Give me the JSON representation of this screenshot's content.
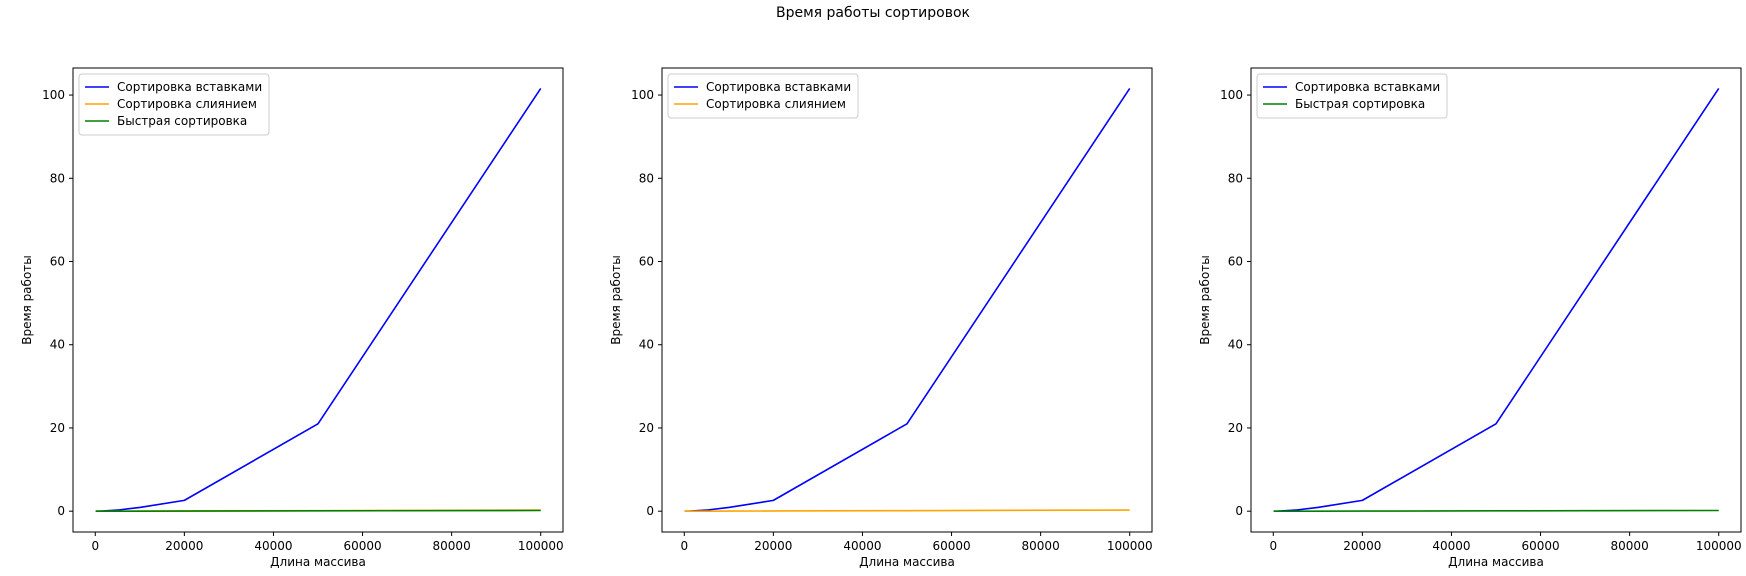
{
  "figure_title": "Время работы сортировок",
  "colors": {
    "insertion": "#0000ff",
    "merge": "#ffa500",
    "quick": "#008000",
    "axes": "#000000",
    "legend_border": "#cccccc"
  },
  "chart_data": [
    {
      "type": "line",
      "xlabel": "Длина массива",
      "ylabel": "Время работы",
      "xlim": [
        -5000,
        105000
      ],
      "ylim": [
        -5,
        106.5
      ],
      "xticks": [
        0,
        20000,
        40000,
        60000,
        80000,
        100000
      ],
      "xtick_labels": [
        "0",
        "20000",
        "40000",
        "60000",
        "80000",
        "100000"
      ],
      "yticks": [
        0,
        20,
        40,
        60,
        80,
        100
      ],
      "ytick_labels": [
        "0",
        "20",
        "40",
        "60",
        "80",
        "100"
      ],
      "grid": false,
      "legend_position": "upper left",
      "series": [
        {
          "name": "Сортировка вставками",
          "color": "#0000ff",
          "x": [
            100,
            1000,
            5000,
            10000,
            20000,
            50000,
            100000
          ],
          "y": [
            0.0,
            0.01,
            0.26,
            0.9,
            2.6,
            21.0,
            101.6
          ]
        },
        {
          "name": "Сортировка слиянием",
          "color": "#ffa500",
          "x": [
            100,
            1000,
            5000,
            10000,
            20000,
            50000,
            100000
          ],
          "y": [
            0.0,
            0.0,
            0.01,
            0.02,
            0.05,
            0.13,
            0.28
          ]
        },
        {
          "name": "Быстрая сортировка",
          "color": "#008000",
          "x": [
            100,
            1000,
            5000,
            10000,
            20000,
            50000,
            100000
          ],
          "y": [
            0.0,
            0.0,
            0.01,
            0.01,
            0.03,
            0.08,
            0.17
          ]
        }
      ]
    },
    {
      "type": "line",
      "xlabel": "Длина массива",
      "ylabel": "Время работы",
      "xlim": [
        -5000,
        105000
      ],
      "ylim": [
        -5,
        106.5
      ],
      "xticks": [
        0,
        20000,
        40000,
        60000,
        80000,
        100000
      ],
      "xtick_labels": [
        "0",
        "20000",
        "40000",
        "60000",
        "80000",
        "100000"
      ],
      "yticks": [
        0,
        20,
        40,
        60,
        80,
        100
      ],
      "ytick_labels": [
        "0",
        "20",
        "40",
        "60",
        "80",
        "100"
      ],
      "grid": false,
      "legend_position": "upper left",
      "series": [
        {
          "name": "Сортировка вставками",
          "color": "#0000ff",
          "x": [
            100,
            1000,
            5000,
            10000,
            20000,
            50000,
            100000
          ],
          "y": [
            0.0,
            0.01,
            0.26,
            0.9,
            2.6,
            21.0,
            101.6
          ]
        },
        {
          "name": "Сортировка слиянием",
          "color": "#ffa500",
          "x": [
            100,
            1000,
            5000,
            10000,
            20000,
            50000,
            100000
          ],
          "y": [
            0.0,
            0.0,
            0.01,
            0.02,
            0.05,
            0.13,
            0.28
          ]
        }
      ]
    },
    {
      "type": "line",
      "xlabel": "Длина массива",
      "ylabel": "Время работы",
      "xlim": [
        -5000,
        105000
      ],
      "ylim": [
        -5,
        106.5
      ],
      "xticks": [
        0,
        20000,
        40000,
        60000,
        80000,
        100000
      ],
      "xtick_labels": [
        "0",
        "20000",
        "40000",
        "60000",
        "80000",
        "100000"
      ],
      "yticks": [
        0,
        20,
        40,
        60,
        80,
        100
      ],
      "ytick_labels": [
        "0",
        "20",
        "40",
        "60",
        "80",
        "100"
      ],
      "grid": false,
      "legend_position": "upper left",
      "series": [
        {
          "name": "Сортировка вставками",
          "color": "#0000ff",
          "x": [
            100,
            1000,
            5000,
            10000,
            20000,
            50000,
            100000
          ],
          "y": [
            0.0,
            0.01,
            0.26,
            0.9,
            2.6,
            21.0,
            101.6
          ]
        },
        {
          "name": "Быстрая сортировка",
          "color": "#008000",
          "x": [
            100,
            1000,
            5000,
            10000,
            20000,
            50000,
            100000
          ],
          "y": [
            0.0,
            0.0,
            0.01,
            0.01,
            0.03,
            0.08,
            0.17
          ]
        }
      ]
    }
  ]
}
